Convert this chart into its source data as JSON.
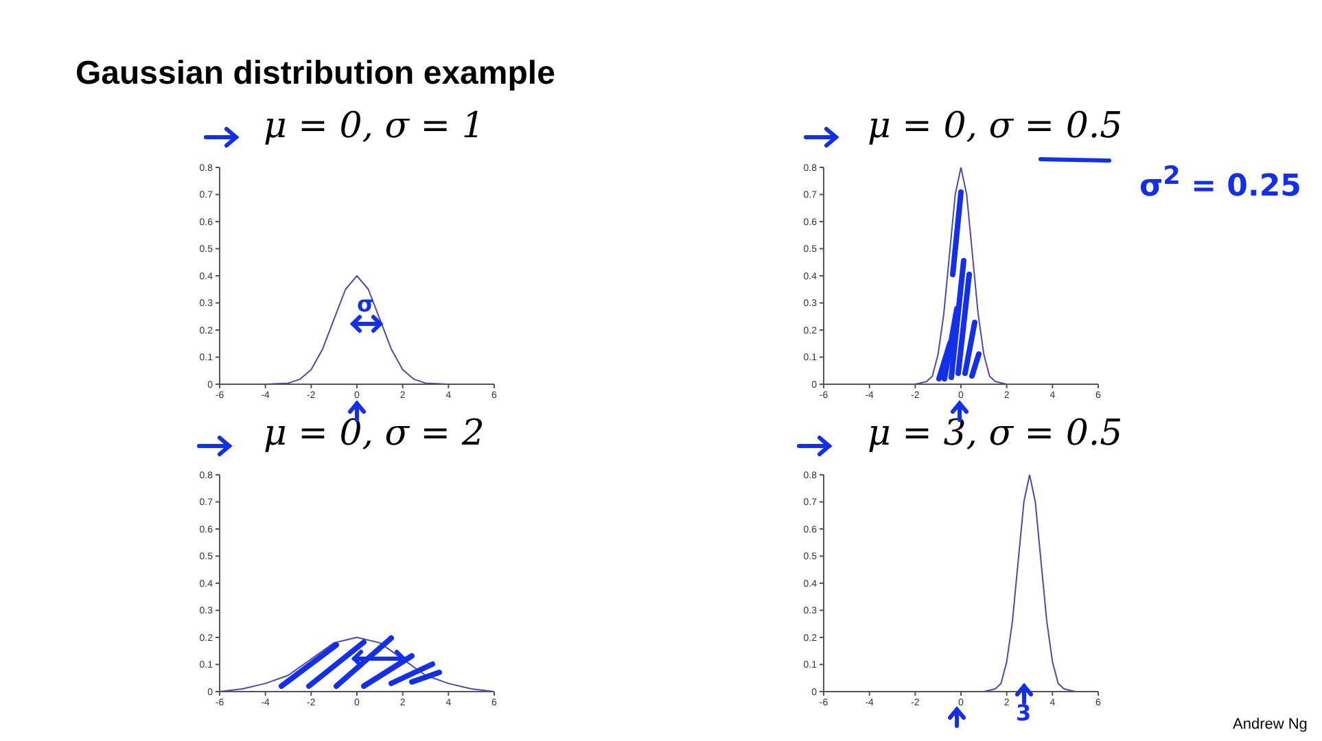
{
  "chart_data": [
    {
      "type": "line",
      "title": "μ = 0, σ = 1",
      "annotations": [
        "Gaussian distribution example",
        "σ"
      ],
      "xlim": [
        -6,
        6
      ],
      "xticks": [
        -6,
        -4,
        -2,
        0,
        2,
        4,
        6
      ],
      "ylim": [
        0,
        0.8
      ],
      "yticks": [
        0,
        0.1,
        0.2,
        0.3,
        0.4,
        0.5,
        0.6,
        0.7,
        0.8
      ],
      "grid": false,
      "legend": false,
      "marker": "none",
      "line_style": "solid",
      "series": [
        {
          "color": "#4b4ba5",
          "x": [
            -6,
            -4,
            -3,
            -2.5,
            -2,
            -1.5,
            -1,
            -0.5,
            0,
            0.5,
            1,
            1.5,
            2,
            2.5,
            3,
            4,
            6
          ],
          "values": [
            0,
            0,
            0.004,
            0.018,
            0.054,
            0.13,
            0.24,
            0.35,
            0.4,
            0.35,
            0.24,
            0.13,
            0.054,
            0.018,
            0.004,
            0,
            0
          ]
        }
      ]
    },
    {
      "type": "line",
      "title": "μ = 0, σ = 0.5",
      "annotations": [
        "σ$^{2}$ = 0.25"
      ],
      "xlim": [
        -6,
        6
      ],
      "xticks": [
        -6,
        -4,
        -2,
        0,
        2,
        4,
        6
      ],
      "ylim": [
        0,
        0.8
      ],
      "yticks": [
        0,
        0.1,
        0.2,
        0.3,
        0.4,
        0.5,
        0.6,
        0.7,
        0.8
      ],
      "grid": false,
      "legend": false,
      "marker": "none",
      "line_style": "solid",
      "series": [
        {
          "color": "#4b4ba5",
          "x": [
            -6,
            -4,
            -2,
            -1.5,
            -1.25,
            -1,
            -0.75,
            -0.5,
            -0.25,
            0,
            0.25,
            0.5,
            0.75,
            1,
            1.25,
            1.5,
            2,
            4,
            6
          ],
          "values": [
            0,
            0,
            0,
            0.01,
            0.03,
            0.11,
            0.26,
            0.48,
            0.7,
            0.8,
            0.7,
            0.48,
            0.26,
            0.11,
            0.03,
            0.01,
            0,
            0,
            0
          ]
        }
      ]
    },
    {
      "type": "line",
      "title": "μ = 0, σ = 2",
      "xlim": [
        -6,
        6
      ],
      "xticks": [
        -6,
        -4,
        -2,
        0,
        2,
        4,
        6
      ],
      "ylim": [
        0,
        0.8
      ],
      "yticks": [
        0,
        0.1,
        0.2,
        0.3,
        0.4,
        0.5,
        0.6,
        0.7,
        0.8
      ],
      "grid": false,
      "legend": false,
      "marker": "none",
      "line_style": "solid",
      "series": [
        {
          "color": "#4b4ba5",
          "x": [
            -6,
            -5,
            -4,
            -3,
            -2,
            -1,
            0,
            1,
            2,
            3,
            4,
            5,
            6
          ],
          "values": [
            0,
            0.01,
            0.03,
            0.06,
            0.12,
            0.18,
            0.2,
            0.18,
            0.12,
            0.06,
            0.03,
            0.01,
            0
          ]
        }
      ]
    },
    {
      "type": "line",
      "title": "μ = 3, σ = 0.5",
      "annotations": [
        "3",
        "Andrew Ng"
      ],
      "xlim": [
        -6,
        6
      ],
      "xticks": [
        -6,
        -4,
        -2,
        0,
        2,
        4,
        6
      ],
      "ylim": [
        0,
        0.8
      ],
      "yticks": [
        0,
        0.1,
        0.2,
        0.3,
        0.4,
        0.5,
        0.6,
        0.7,
        0.8
      ],
      "grid": false,
      "legend": false,
      "marker": "none",
      "line_style": "solid",
      "series": [
        {
          "color": "#4b4ba5",
          "x": [
            -6,
            -2,
            1,
            1.5,
            1.75,
            2,
            2.25,
            2.5,
            2.75,
            3,
            3.25,
            3.5,
            3.75,
            4,
            4.25,
            4.5,
            5,
            6
          ],
          "values": [
            0,
            0,
            0,
            0.01,
            0.03,
            0.11,
            0.26,
            0.48,
            0.7,
            0.8,
            0.7,
            0.48,
            0.26,
            0.11,
            0.03,
            0.01,
            0,
            0
          ]
        }
      ]
    }
  ]
}
